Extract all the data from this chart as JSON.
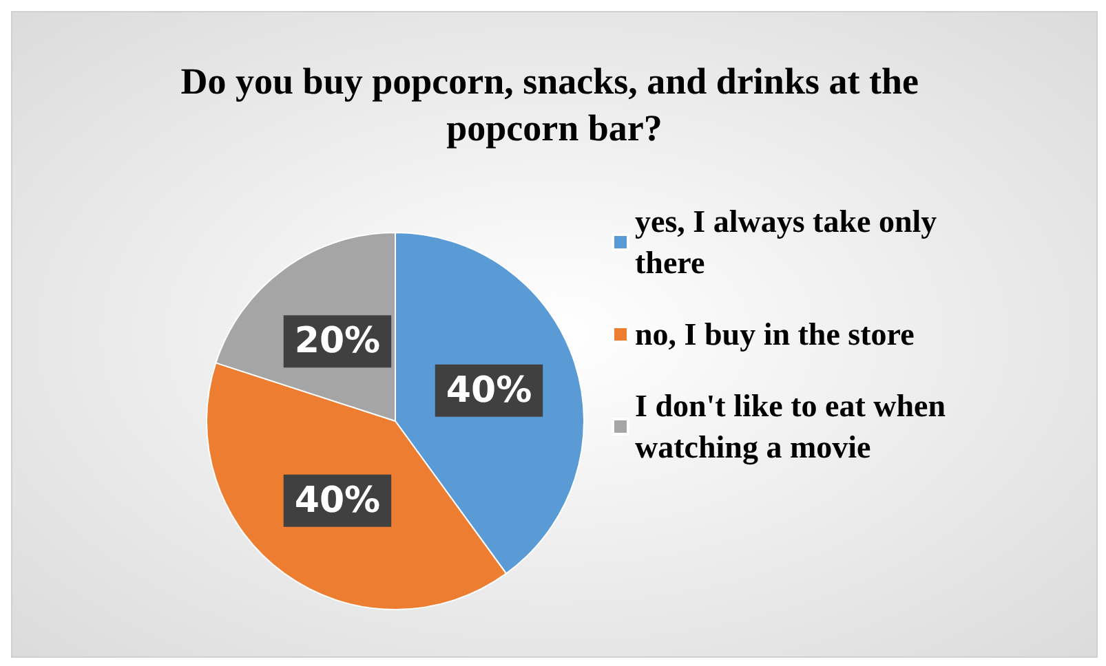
{
  "chart_data": {
    "type": "pie",
    "title": "Do you buy popcorn, snacks, and drinks at the popcorn bar?",
    "categories": [
      "yes, I always take only there",
      "no, I buy in the store",
      "I don't like to eat when watching a movie"
    ],
    "values": [
      40,
      40,
      20
    ],
    "colors": [
      "#5b9bd5",
      "#ed7d31",
      "#a5a5a5"
    ],
    "value_labels": [
      "40%",
      "40%",
      "20%"
    ],
    "legend": "right"
  }
}
